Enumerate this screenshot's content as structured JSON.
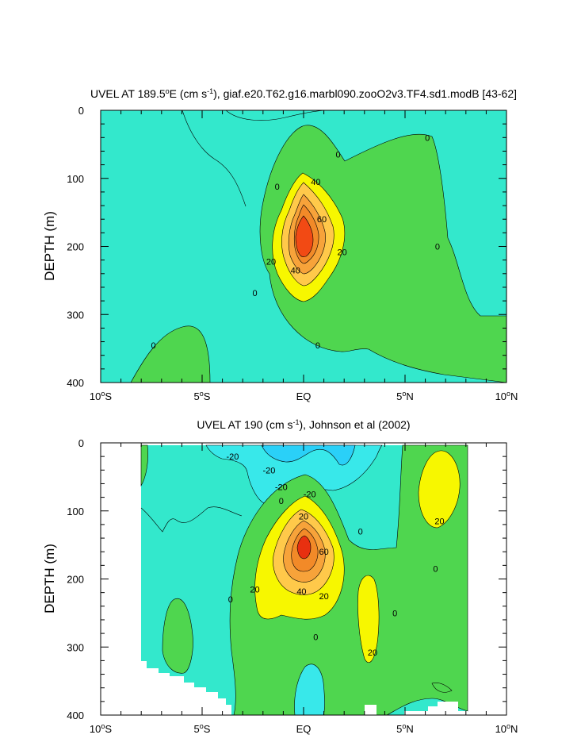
{
  "chart_data": [
    {
      "type": "contour",
      "title_pre": "UVEL AT 189.5",
      "title_deg": "o",
      "title_mid": "E (cm s",
      "title_sup": "-1",
      "title_post": "), giaf.e20.T62.g16.marbl090.zooO2v3.TF4.sd1.modB [43-62]",
      "ylabel": "DEPTH (m)",
      "xlim": [
        -10,
        10
      ],
      "ylim": [
        400,
        0
      ],
      "yticks": [
        {
          "value": 0,
          "label": "0"
        },
        {
          "value": 100,
          "label": "100"
        },
        {
          "value": 200,
          "label": "200"
        },
        {
          "value": 300,
          "label": "300"
        },
        {
          "value": 400,
          "label": "400"
        }
      ],
      "xticks": [
        {
          "value": -10,
          "num": "10",
          "deg": "o",
          "hemi": "S"
        },
        {
          "value": -5,
          "num": "5",
          "deg": "o",
          "hemi": "S"
        },
        {
          "value": 0,
          "num": "EQ",
          "deg": "",
          "hemi": ""
        },
        {
          "value": 5,
          "num": "5",
          "deg": "o",
          "hemi": "N"
        },
        {
          "value": 10,
          "num": "10",
          "deg": "o",
          "hemi": "N"
        }
      ],
      "contour_labels": [
        {
          "x": 1.7,
          "y": 65,
          "text": "0"
        },
        {
          "x": 6.1,
          "y": 40,
          "text": "0"
        },
        {
          "x": -1.3,
          "y": 112,
          "text": "0"
        },
        {
          "x": 0.6,
          "y": 105,
          "text": "40"
        },
        {
          "x": 0.9,
          "y": 160,
          "text": "60"
        },
        {
          "x": 6.6,
          "y": 200,
          "text": "0"
        },
        {
          "x": 1.9,
          "y": 208,
          "text": "20"
        },
        {
          "x": -1.6,
          "y": 222,
          "text": "20"
        },
        {
          "x": -0.4,
          "y": 235,
          "text": "40"
        },
        {
          "x": -2.4,
          "y": 268,
          "text": "0"
        },
        {
          "x": 0.7,
          "y": 345,
          "text": "0"
        },
        {
          "x": -7.4,
          "y": 345,
          "text": "0"
        }
      ]
    },
    {
      "type": "contour",
      "title_pre": "UVEL AT 190 (cm s",
      "title_sup": "-1",
      "title_post": "), Johnson et al (2002)",
      "ylabel": "DEPTH (m)",
      "xlim": [
        -10,
        10
      ],
      "ylim": [
        400,
        0
      ],
      "data_xrange": [
        -8,
        8
      ],
      "yticks": [
        {
          "value": 0,
          "label": "0"
        },
        {
          "value": 100,
          "label": "100"
        },
        {
          "value": 200,
          "label": "200"
        },
        {
          "value": 300,
          "label": "300"
        },
        {
          "value": 400,
          "label": "400"
        }
      ],
      "xticks": [
        {
          "value": -10,
          "num": "10",
          "deg": "o",
          "hemi": "S"
        },
        {
          "value": -5,
          "num": "5",
          "deg": "o",
          "hemi": "S"
        },
        {
          "value": 0,
          "num": "EQ",
          "deg": "",
          "hemi": ""
        },
        {
          "value": 5,
          "num": "5",
          "deg": "o",
          "hemi": "N"
        },
        {
          "value": 10,
          "num": "10",
          "deg": "o",
          "hemi": "N"
        }
      ],
      "contour_labels": [
        {
          "x": -3.5,
          "y": 20,
          "text": "-20"
        },
        {
          "x": -1.7,
          "y": 40,
          "text": "-20"
        },
        {
          "x": -1.1,
          "y": 65,
          "text": "-20"
        },
        {
          "x": 0.3,
          "y": 75,
          "text": "-20"
        },
        {
          "x": -1.1,
          "y": 85,
          "text": "0"
        },
        {
          "x": 0.0,
          "y": 108,
          "text": "20"
        },
        {
          "x": 2.8,
          "y": 130,
          "text": "0"
        },
        {
          "x": 6.7,
          "y": 115,
          "text": "20"
        },
        {
          "x": 1.0,
          "y": 160,
          "text": "60"
        },
        {
          "x": 6.5,
          "y": 185,
          "text": "0"
        },
        {
          "x": -2.4,
          "y": 215,
          "text": "20"
        },
        {
          "x": -0.1,
          "y": 218,
          "text": "40"
        },
        {
          "x": 1.0,
          "y": 225,
          "text": "20"
        },
        {
          "x": -3.6,
          "y": 230,
          "text": "0"
        },
        {
          "x": 4.5,
          "y": 250,
          "text": "0"
        },
        {
          "x": 0.6,
          "y": 285,
          "text": "0"
        },
        {
          "x": 3.4,
          "y": 308,
          "text": "20"
        }
      ]
    }
  ]
}
